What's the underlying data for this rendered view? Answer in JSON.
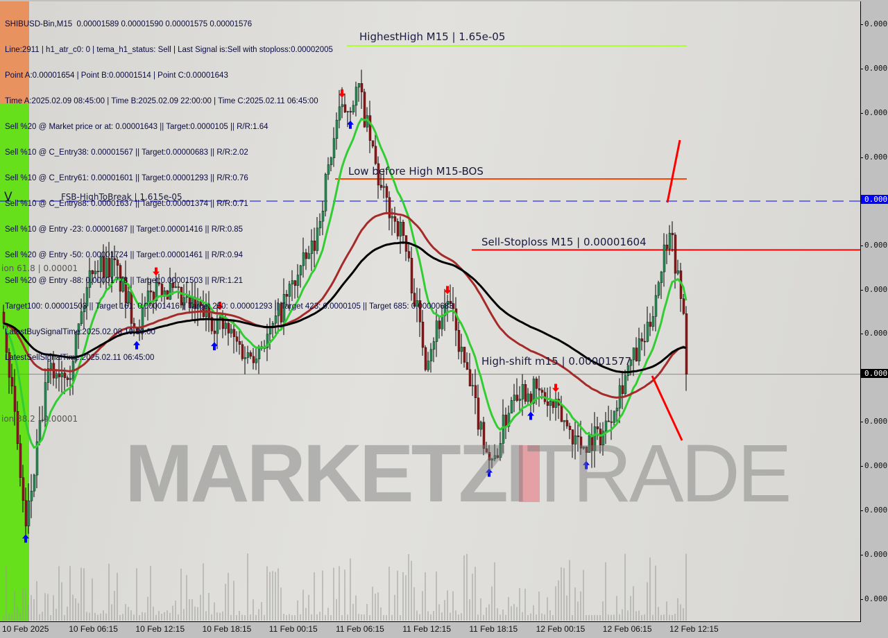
{
  "header": {
    "symbol_line": "SHIBUSD-Bin,M15  0.00001589 0.00001590 0.00001575 0.00001576",
    "lines": [
      "Line:2911 | h1_atr_c0: 0 | tema_h1_status: Sell | Last Signal is:Sell with stoploss:0.00002005",
      "Point A:0.00001654 | Point B:0.00001514 | Point C:0.00001643",
      "Time A:2025.02.09 08:45:00 | Time B:2025.02.09 22:00:00 | Time C:2025.02.11 06:45:00",
      "Sell %20 @ Market price or at: 0.00001643 || Target:0.0000105 || R/R:1.64",
      "Sell %10 @ C_Entry38: 0.00001567 || Target:0.00000683 || R/R:2.02",
      "Sell %10 @ C_Entry61: 0.00001601 || Target:0.00001293 || R/R:0.76",
      "Sell %10 @ C_Entry88: 0.00001637 || Target:0.00001374 || R/R:0.71",
      "Sell %10 @ Entry -23: 0.00001687 || Target:0.00001416 || R/R:0.85",
      "Sell %20 @ Entry -50: 0.00001724 || Target:0.00001461 || R/R:0.94",
      "Sell %20 @ Entry -88: 0.00001778 || Target:0.00001503 || R/R:1.21",
      "Target100: 0.00001503 || Target 161: 0.00001416 || Target 250: 0.00001293 || Target 423: 0.0000105 || Target 685: 0.00000683",
      "LatestBuySignalTime:2025.02.08 19:30:00",
      "LatestSellSignalTime:2025.02.11 06:45:00"
    ]
  },
  "levels": {
    "highest_high": {
      "label": "HighestHigh   M15 | 1.65e-05",
      "price": 1.65e-05,
      "color": "#adff2f"
    },
    "low_before_high": {
      "label": "Low before High   M15-BOS",
      "price": 1.62e-05,
      "color": "#ff4500"
    },
    "fsb": {
      "label": "FSB-HighToBreak | 1.615e-05",
      "price": 1.615e-05,
      "color": "#0000ff",
      "marker": "V"
    },
    "sell_stoploss": {
      "label": "Sell-Stoploss M15 | 0.00001604",
      "price": 1.604e-05,
      "color": "#ff0000"
    },
    "high_shift": {
      "label": "High-shift m15 | 0.00001577",
      "price": 1.577e-05
    },
    "fib_618": {
      "label": "ion 61.8 | 0.00001"
    },
    "fib_382": {
      "label": "ion 38.2 | 0.00001"
    }
  },
  "watermark": {
    "bold": "MARKETZI",
    "thin": "TRADE"
  },
  "axis": {
    "price_labels": [
      "0.000",
      "0.000",
      "0.000",
      "0.000",
      "0.000",
      "0.000",
      "0.000",
      "0.000",
      "0.000",
      "0.000",
      "0.000",
      "0.000",
      "0.000"
    ],
    "fsb_label": "0.000",
    "current_label": "0.000",
    "time_labels": [
      "10 Feb 2025",
      "10 Feb 06:15",
      "10 Feb 12:15",
      "10 Feb 18:15",
      "11 Feb 00:15",
      "11 Feb 06:15",
      "11 Feb 12:15",
      "11 Feb 18:15",
      "12 Feb 00:15",
      "12 Feb 06:15",
      "12 Feb 12:15"
    ]
  },
  "chart_data": {
    "type": "candlestick",
    "symbol": "SHIBUSD-Bin",
    "timeframe": "M15",
    "last_bar": {
      "open": 1.589e-05,
      "high": 1.59e-05,
      "low": 1.575e-05,
      "close": 1.576e-05
    },
    "approx_close_every_2h": {
      "start": "10 Feb 2025 00:00",
      "values": [
        1.59e-05,
        1.541e-05,
        1.576e-05,
        1.578e-05,
        1.601e-05,
        1.6e-05,
        1.587e-05,
        1.597e-05,
        1.592e-05,
        1.59e-05,
        1.586e-05,
        1.58e-05,
        1.585e-05,
        1.596e-05,
        1.605e-05,
        1.633e-05,
        1.64e-05,
        1.617e-05,
        1.607e-05,
        1.58e-05,
        1.593e-05,
        1.573e-05,
        1.555e-05,
        1.573e-05,
        1.572e-05,
        1.567e-05,
        1.56e-05,
        1.563e-05,
        1.576e-05,
        1.585e-05,
        1.61e-05,
        1.576e-05
      ]
    },
    "colors": {
      "bull": "#2e8b57",
      "bear": "#8b1a1a",
      "ma_fast": "#32cd32",
      "ma_slow": "#a52a2a",
      "ma_long": "#000000",
      "buy_arrow": "#0000ff",
      "sell_arrow": "#ff0000",
      "buy_zone": "#66e01a"
    }
  }
}
